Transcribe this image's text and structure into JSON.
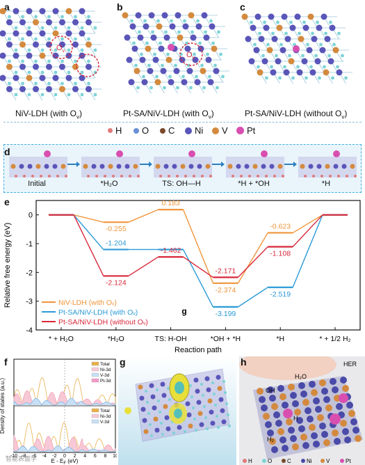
{
  "panels": {
    "a": {
      "letter": "a",
      "caption": "NiV-LDH (with O",
      "sub": "v",
      "suffix": ")",
      "vacancy": "O",
      "vacancy_sub": "v"
    },
    "b": {
      "letter": "b",
      "caption": "Pt-SA/NiV-LDH (with O",
      "sub": "v",
      "suffix": ")",
      "vacancy": "O",
      "vacancy_sub": "v"
    },
    "c": {
      "letter": "c",
      "caption": "Pt-SA/NiV-LDH (without O",
      "sub": "v",
      "suffix": ")"
    }
  },
  "atom_legend": [
    {
      "label": "H",
      "color": "#e07a7a"
    },
    {
      "label": "O",
      "color": "#6a8fd8"
    },
    {
      "label": "C",
      "color": "#7a4a2a"
    },
    {
      "label": "Ni",
      "color": "#5a55b8"
    },
    {
      "label": "V",
      "color": "#d48a3e"
    },
    {
      "label": "Pt",
      "color": "#d94fb0"
    }
  ],
  "panel_d": {
    "letter": "d",
    "states": [
      "Initial",
      "*H₂O",
      "TS: OH—H",
      "*H + *OH",
      "*H"
    ]
  },
  "chart_data": {
    "type": "line",
    "letter": "e",
    "xlabel": "Reaction path",
    "ylabel": "Relative free energy (eV)",
    "ylim": [
      -4,
      0.5
    ],
    "yticks": [
      0,
      -1,
      -2,
      -3,
      -4
    ],
    "categories": [
      "* + H₂O",
      "*H₂O",
      "TS: H-OH",
      "*OH + *H",
      "*H",
      "* + 1/2 H₂"
    ],
    "series": [
      {
        "name": "NiV-LDH (with Oᵥ)",
        "color": "#f0953a",
        "values": [
          0,
          -0.255,
          0.183,
          -2.374,
          -0.623,
          0
        ],
        "labels": [
          "",
          "-0.255",
          "0.183",
          "-2.374",
          "-0.623",
          ""
        ]
      },
      {
        "name": "Pt-SA/NiV-LDH (with Oᵥ)",
        "color": "#2a9ad6",
        "values": [
          0,
          -1.204,
          -1.204,
          -3.199,
          -2.519,
          0
        ],
        "labels": [
          "",
          "-1.204",
          "",
          "-3.199",
          "-2.519",
          ""
        ]
      },
      {
        "name": "Pt-SA/NiV-LDH (without Oᵥ)",
        "color": "#d8283a",
        "values": [
          0,
          -2.124,
          -1.462,
          -2.171,
          -1.108,
          0
        ],
        "labels": [
          "",
          "-2.124",
          "-1.462",
          "-2.171",
          "-1.108",
          ""
        ]
      }
    ],
    "annotation": "g"
  },
  "panel_f": {
    "letter": "f",
    "ylabel": "Density of states (a.u.)",
    "xlabel": "E - E",
    "xlabel_sub": "F",
    "xlabel_unit": " (eV)",
    "xticks": [
      "-10",
      "-8",
      "-6",
      "-4",
      "-2",
      "0",
      "2",
      "4",
      "6",
      "8",
      "10"
    ],
    "top_legend": [
      "Total",
      "Ni-3d",
      "V-3d",
      "Pt-3d"
    ],
    "bottom_legend": [
      "Total",
      "Ni-3d",
      "V-3d"
    ]
  },
  "panel_g": {
    "letter": "g"
  },
  "panel_h": {
    "letter": "h",
    "tag": "HER",
    "h2o": "H₂O",
    "oh": "OH",
    "h": "H",
    "h2": "H₂"
  },
  "bottom_legend": [
    "H",
    "O",
    "C",
    "Ni",
    "V",
    "Pt"
  ],
  "watermark": "智能表面学"
}
